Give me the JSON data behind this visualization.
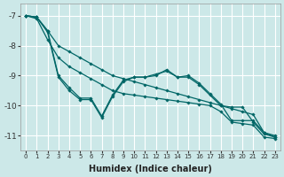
{
  "xlabel": "Humidex (Indice chaleur)",
  "ylabel": "",
  "background_color": "#cce8e8",
  "grid_color": "#ffffff",
  "line_color": "#006666",
  "xlim": [
    -0.5,
    23.5
  ],
  "ylim": [
    -11.5,
    -6.6
  ],
  "yticks": [
    -7,
    -8,
    -9,
    -10,
    -11
  ],
  "xticks": [
    0,
    1,
    2,
    3,
    4,
    5,
    6,
    7,
    8,
    9,
    10,
    11,
    12,
    13,
    14,
    15,
    16,
    17,
    18,
    19,
    20,
    21,
    22,
    23
  ],
  "series": [
    {
      "points": [
        [
          0,
          -7.0
        ],
        [
          1,
          -7.05
        ],
        [
          2,
          -7.5
        ],
        [
          3,
          -8.0
        ],
        [
          4,
          -8.2
        ],
        [
          5,
          -8.4
        ],
        [
          6,
          -8.6
        ],
        [
          7,
          -8.8
        ],
        [
          8,
          -9.0
        ],
        [
          9,
          -9.1
        ],
        [
          10,
          -9.2
        ],
        [
          11,
          -9.3
        ],
        [
          12,
          -9.4
        ],
        [
          13,
          -9.5
        ],
        [
          14,
          -9.6
        ],
        [
          15,
          -9.7
        ],
        [
          16,
          -9.8
        ],
        [
          17,
          -9.9
        ],
        [
          18,
          -10.0
        ],
        [
          19,
          -10.1
        ],
        [
          20,
          -10.2
        ],
        [
          21,
          -10.3
        ],
        [
          22,
          -10.9
        ],
        [
          23,
          -11.0
        ]
      ]
    },
    {
      "points": [
        [
          0,
          -7.0
        ],
        [
          1,
          -7.1
        ],
        [
          2,
          -7.8
        ],
        [
          3,
          -8.4
        ],
        [
          4,
          -8.7
        ],
        [
          5,
          -8.9
        ],
        [
          6,
          -9.1
        ],
        [
          7,
          -9.3
        ],
        [
          8,
          -9.5
        ],
        [
          9,
          -9.6
        ],
        [
          10,
          -9.65
        ],
        [
          11,
          -9.7
        ],
        [
          12,
          -9.75
        ],
        [
          13,
          -9.8
        ],
        [
          14,
          -9.85
        ],
        [
          15,
          -9.9
        ],
        [
          16,
          -9.95
        ],
        [
          17,
          -10.0
        ],
        [
          18,
          -10.2
        ],
        [
          19,
          -10.55
        ],
        [
          20,
          -10.6
        ],
        [
          21,
          -10.65
        ],
        [
          22,
          -11.05
        ],
        [
          23,
          -11.1
        ]
      ]
    },
    {
      "points": [
        [
          0,
          -7.0
        ],
        [
          1,
          -7.05
        ],
        [
          2,
          -7.5
        ],
        [
          3,
          -9.0
        ],
        [
          4,
          -9.4
        ],
        [
          5,
          -9.75
        ],
        [
          6,
          -9.75
        ],
        [
          7,
          -10.35
        ],
        [
          8,
          -9.65
        ],
        [
          9,
          -9.15
        ],
        [
          10,
          -9.05
        ],
        [
          11,
          -9.05
        ],
        [
          12,
          -8.95
        ],
        [
          13,
          -8.85
        ],
        [
          14,
          -9.05
        ],
        [
          15,
          -9.0
        ],
        [
          16,
          -9.25
        ],
        [
          17,
          -9.6
        ],
        [
          18,
          -9.95
        ],
        [
          19,
          -10.5
        ],
        [
          20,
          -10.5
        ],
        [
          21,
          -10.5
        ],
        [
          22,
          -10.9
        ],
        [
          23,
          -11.05
        ]
      ]
    },
    {
      "points": [
        [
          0,
          -7.0
        ],
        [
          1,
          -7.05
        ],
        [
          2,
          -7.55
        ],
        [
          3,
          -9.05
        ],
        [
          4,
          -9.5
        ],
        [
          5,
          -9.8
        ],
        [
          6,
          -9.8
        ],
        [
          7,
          -10.4
        ],
        [
          8,
          -9.7
        ],
        [
          9,
          -9.2
        ],
        [
          10,
          -9.05
        ],
        [
          11,
          -9.05
        ],
        [
          12,
          -9.0
        ],
        [
          13,
          -8.8
        ],
        [
          14,
          -9.05
        ],
        [
          15,
          -9.05
        ],
        [
          16,
          -9.3
        ],
        [
          17,
          -9.65
        ],
        [
          18,
          -10.0
        ],
        [
          19,
          -10.05
        ],
        [
          20,
          -10.05
        ],
        [
          21,
          -10.55
        ],
        [
          22,
          -10.95
        ],
        [
          23,
          -11.05
        ]
      ]
    }
  ]
}
